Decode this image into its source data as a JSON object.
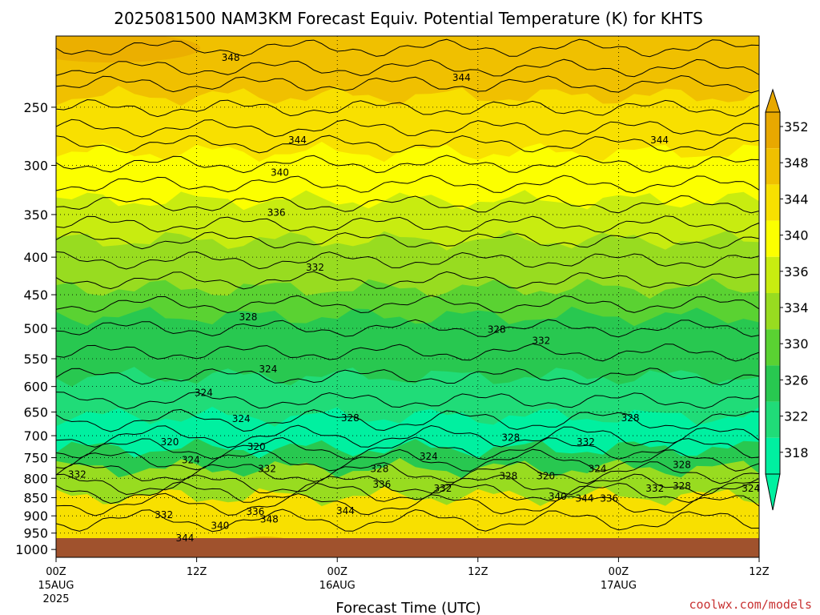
{
  "title": "2025081500 NAM3KM Forecast Equiv. Potential Temperature (K) for KHTS",
  "watermark": "coolwx.com/models",
  "watermark_color": "#c83232",
  "ground_color": "#a0522d",
  "chart_data": {
    "type": "heatmap",
    "title": "2025081500 NAM3KM Forecast Equiv. Potential Temperature (K) for KHTS",
    "xlabel": "Forecast Time (UTC)",
    "ylabel": "",
    "x_ticks": [
      {
        "hour": 0,
        "label": "00Z",
        "sub": "15AUG",
        "sub2": "2025"
      },
      {
        "hour": 12,
        "label": "12Z",
        "sub": "",
        "sub2": ""
      },
      {
        "hour": 24,
        "label": "00Z",
        "sub": "16AUG",
        "sub2": ""
      },
      {
        "hour": 36,
        "label": "12Z",
        "sub": "",
        "sub2": ""
      },
      {
        "hour": 48,
        "label": "00Z",
        "sub": "17AUG",
        "sub2": ""
      },
      {
        "hour": 60,
        "label": "12Z",
        "sub": "",
        "sub2": ""
      }
    ],
    "xlim": [
      0,
      60
    ],
    "y_ticks": [
      "250",
      "300",
      "350",
      "400",
      "450",
      "500",
      "550",
      "600",
      "650",
      "700",
      "750",
      "800",
      "850",
      "900",
      "950",
      "1000"
    ],
    "ylim_hpa": [
      1025,
      200
    ],
    "y_scale": "log",
    "grid": true,
    "colorbar": {
      "labels": [
        "352",
        "348",
        "344",
        "340",
        "336",
        "334",
        "330",
        "326",
        "322",
        "318"
      ],
      "colors": [
        "#e8a800",
        "#f0c000",
        "#f8e000",
        "#fcff00",
        "#c8ec10",
        "#98dc20",
        "#5ad232",
        "#28c850",
        "#20dc78",
        "#00f0a0"
      ]
    },
    "contour_labels": [
      {
        "text": "348",
        "hour": 14.9,
        "hpa": 214
      },
      {
        "text": "344",
        "hour": 34.6,
        "hpa": 228
      },
      {
        "text": "344",
        "hour": 20.6,
        "hpa": 277
      },
      {
        "text": "344",
        "hour": 51.5,
        "hpa": 277
      },
      {
        "text": "340",
        "hour": 19.1,
        "hpa": 307
      },
      {
        "text": "336",
        "hour": 18.8,
        "hpa": 348
      },
      {
        "text": "332",
        "hour": 22.1,
        "hpa": 413
      },
      {
        "text": "328",
        "hour": 16.4,
        "hpa": 483
      },
      {
        "text": "328",
        "hour": 37.6,
        "hpa": 502
      },
      {
        "text": "332",
        "hour": 41.4,
        "hpa": 520
      },
      {
        "text": "324",
        "hour": 18.1,
        "hpa": 568
      },
      {
        "text": "324",
        "hour": 12.6,
        "hpa": 612
      },
      {
        "text": "324",
        "hour": 15.8,
        "hpa": 664
      },
      {
        "text": "328",
        "hour": 25.1,
        "hpa": 662
      },
      {
        "text": "328",
        "hour": 49.0,
        "hpa": 662
      },
      {
        "text": "328",
        "hour": 38.8,
        "hpa": 704
      },
      {
        "text": "320",
        "hour": 9.7,
        "hpa": 714
      },
      {
        "text": "320",
        "hour": 17.1,
        "hpa": 725
      },
      {
        "text": "332",
        "hour": 45.2,
        "hpa": 714
      },
      {
        "text": "324",
        "hour": 11.5,
        "hpa": 756
      },
      {
        "text": "324",
        "hour": 31.8,
        "hpa": 747
      },
      {
        "text": "332",
        "hour": 18.0,
        "hpa": 777
      },
      {
        "text": "328",
        "hour": 27.6,
        "hpa": 777
      },
      {
        "text": "324",
        "hour": 46.2,
        "hpa": 777
      },
      {
        "text": "328",
        "hour": 53.4,
        "hpa": 767
      },
      {
        "text": "332",
        "hour": 1.8,
        "hpa": 790
      },
      {
        "text": "328",
        "hour": 38.6,
        "hpa": 794
      },
      {
        "text": "320",
        "hour": 41.8,
        "hpa": 794
      },
      {
        "text": "336",
        "hour": 27.8,
        "hpa": 816
      },
      {
        "text": "332",
        "hour": 33.0,
        "hpa": 826
      },
      {
        "text": "332",
        "hour": 51.1,
        "hpa": 826
      },
      {
        "text": "328",
        "hour": 53.4,
        "hpa": 820
      },
      {
        "text": "324",
        "hour": 59.3,
        "hpa": 826
      },
      {
        "text": "340",
        "hour": 42.8,
        "hpa": 847
      },
      {
        "text": "344",
        "hour": 45.1,
        "hpa": 852
      },
      {
        "text": "336",
        "hour": 47.2,
        "hpa": 852
      },
      {
        "text": "344",
        "hour": 24.7,
        "hpa": 886
      },
      {
        "text": "336",
        "hour": 17.0,
        "hpa": 888
      },
      {
        "text": "332",
        "hour": 9.2,
        "hpa": 897
      },
      {
        "text": "348",
        "hour": 18.2,
        "hpa": 910
      },
      {
        "text": "340",
        "hour": 14.0,
        "hpa": 928
      },
      {
        "text": "344",
        "hour": 11.0,
        "hpa": 965
      }
    ]
  }
}
